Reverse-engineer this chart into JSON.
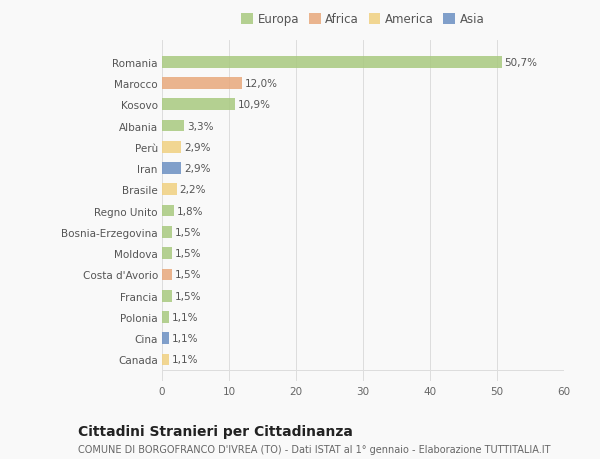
{
  "categories": [
    "Romania",
    "Marocco",
    "Kosovo",
    "Albania",
    "Perù",
    "Iran",
    "Brasile",
    "Regno Unito",
    "Bosnia-Erzegovina",
    "Moldova",
    "Costa d'Avorio",
    "Francia",
    "Polonia",
    "Cina",
    "Canada"
  ],
  "values": [
    50.7,
    12.0,
    10.9,
    3.3,
    2.9,
    2.9,
    2.2,
    1.8,
    1.5,
    1.5,
    1.5,
    1.5,
    1.1,
    1.1,
    1.1
  ],
  "labels": [
    "50,7%",
    "12,0%",
    "10,9%",
    "3,3%",
    "2,9%",
    "2,9%",
    "2,2%",
    "1,8%",
    "1,5%",
    "1,5%",
    "1,5%",
    "1,5%",
    "1,1%",
    "1,1%",
    "1,1%"
  ],
  "continents": [
    "Europa",
    "Africa",
    "Europa",
    "Europa",
    "America",
    "Asia",
    "America",
    "Europa",
    "Europa",
    "Europa",
    "Africa",
    "Europa",
    "Europa",
    "Asia",
    "America"
  ],
  "continent_colors": {
    "Europa": "#a8c97f",
    "Africa": "#e8a87c",
    "America": "#f0d080",
    "Asia": "#6b8fc2"
  },
  "legend_items": [
    "Europa",
    "Africa",
    "America",
    "Asia"
  ],
  "legend_colors": [
    "#a8c97f",
    "#e8a87c",
    "#f0d080",
    "#6b8fc2"
  ],
  "title": "Cittadini Stranieri per Cittadinanza",
  "subtitle": "COMUNE DI BORGOFRANCO D'IVREA (TO) - Dati ISTAT al 1° gennaio - Elaborazione TUTTITALIA.IT",
  "xlim": [
    0,
    60
  ],
  "xticks": [
    0,
    10,
    20,
    30,
    40,
    50,
    60
  ],
  "background_color": "#f9f9f9",
  "grid_color": "#dddddd",
  "bar_height": 0.55,
  "label_fontsize": 7.5,
  "tick_fontsize": 7.5,
  "title_fontsize": 10,
  "subtitle_fontsize": 7.0,
  "legend_fontsize": 8.5
}
